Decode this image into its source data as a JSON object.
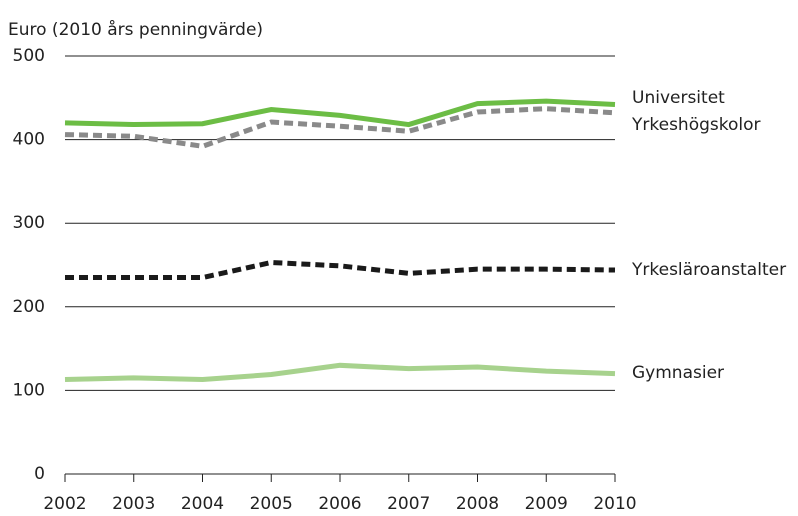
{
  "chart_data": {
    "type": "line",
    "y_label": "Euro (2010 års penningvärde)",
    "x": [
      2002,
      2003,
      2004,
      2005,
      2006,
      2007,
      2008,
      2009,
      2010
    ],
    "xlim": [
      2002,
      2010
    ],
    "xticks": [
      2002,
      2003,
      2004,
      2005,
      2006,
      2007,
      2008,
      2009,
      2010
    ],
    "ylim": [
      0,
      500
    ],
    "yticks": [
      0,
      100,
      200,
      300,
      400,
      500
    ],
    "grid": true,
    "series": [
      {
        "name": "Universitet",
        "color": "#6cbd45",
        "dash": "solid",
        "values": [
          420,
          418,
          419,
          436,
          429,
          418,
          443,
          446,
          442
        ]
      },
      {
        "name": "Yrkeshögskolor",
        "color": "#8a8a8a",
        "dash": "dashed",
        "values": [
          406,
          404,
          392,
          421,
          416,
          410,
          433,
          437,
          432
        ]
      },
      {
        "name": "Yrkesläroanstalter",
        "color": "#1a1a1a",
        "dash": "dashed",
        "values": [
          235,
          235,
          235,
          253,
          249,
          240,
          245,
          245,
          244
        ]
      },
      {
        "name": "Gymnasier",
        "color": "#a7d28d",
        "dash": "solid",
        "values": [
          113,
          115,
          113,
          119,
          130,
          126,
          128,
          123,
          120
        ]
      }
    ]
  }
}
